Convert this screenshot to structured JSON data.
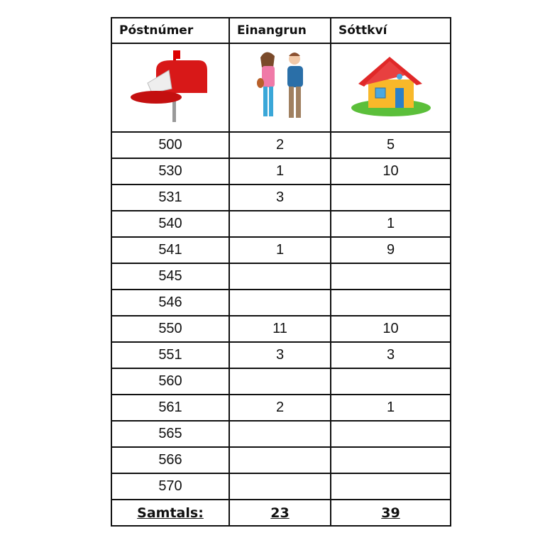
{
  "headers": [
    "Póstnúmer",
    "Einangrun",
    "Sóttkví"
  ],
  "header_icons": [
    "mailbox-icon",
    "people-icon",
    "house-icon"
  ],
  "rows": [
    [
      "500",
      "2",
      "5"
    ],
    [
      "530",
      "1",
      "10"
    ],
    [
      "531",
      "3",
      ""
    ],
    [
      "540",
      "",
      "1"
    ],
    [
      "541",
      "1",
      "9"
    ],
    [
      "545",
      "",
      ""
    ],
    [
      "546",
      "",
      ""
    ],
    [
      "550",
      "11",
      "10"
    ],
    [
      "551",
      "3",
      "3"
    ],
    [
      "560",
      "",
      ""
    ],
    [
      "561",
      "2",
      "1"
    ],
    [
      "565",
      "",
      ""
    ],
    [
      "566",
      "",
      ""
    ],
    [
      "570",
      "",
      ""
    ]
  ],
  "total": [
    "Samtals:",
    "23",
    "39"
  ]
}
